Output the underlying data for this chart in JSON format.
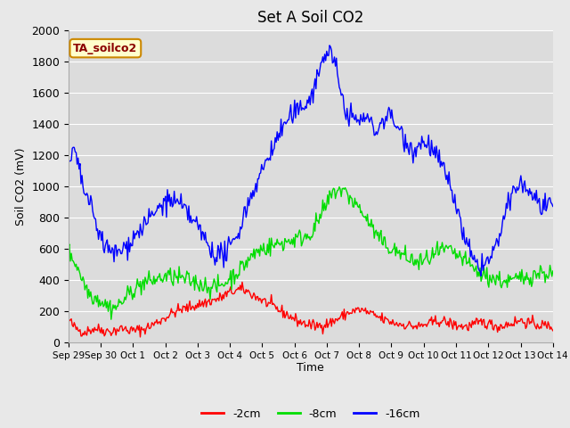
{
  "title": "Set A Soil CO2",
  "ylabel": "Soil CO2 (mV)",
  "xlabel": "Time",
  "legend_label": "TA_soilco2",
  "ylim": [
    0,
    2000
  ],
  "tick_labels": [
    "Sep 29",
    "Sep 30",
    "Oct 1",
    "Oct 2",
    "Oct 3",
    "Oct 4",
    "Oct 5",
    "Oct 6",
    "Oct 7",
    "Oct 8",
    "Oct 9",
    "Oct 10",
    "Oct 11",
    "Oct 12",
    "Oct 13",
    "Oct 14"
  ],
  "background_color": "#e8e8e8",
  "plot_bg_color": "#dcdcdc",
  "line_colors": [
    "#ff0000",
    "#00dd00",
    "#0000ff"
  ],
  "line_labels": [
    "-2cm",
    "-8cm",
    "-16cm"
  ],
  "line_width": 1.0,
  "title_fontsize": 12,
  "axis_fontsize": 9,
  "legend_fontsize": 9,
  "yticks": [
    0,
    200,
    400,
    600,
    800,
    1000,
    1200,
    1400,
    1600,
    1800,
    2000
  ]
}
